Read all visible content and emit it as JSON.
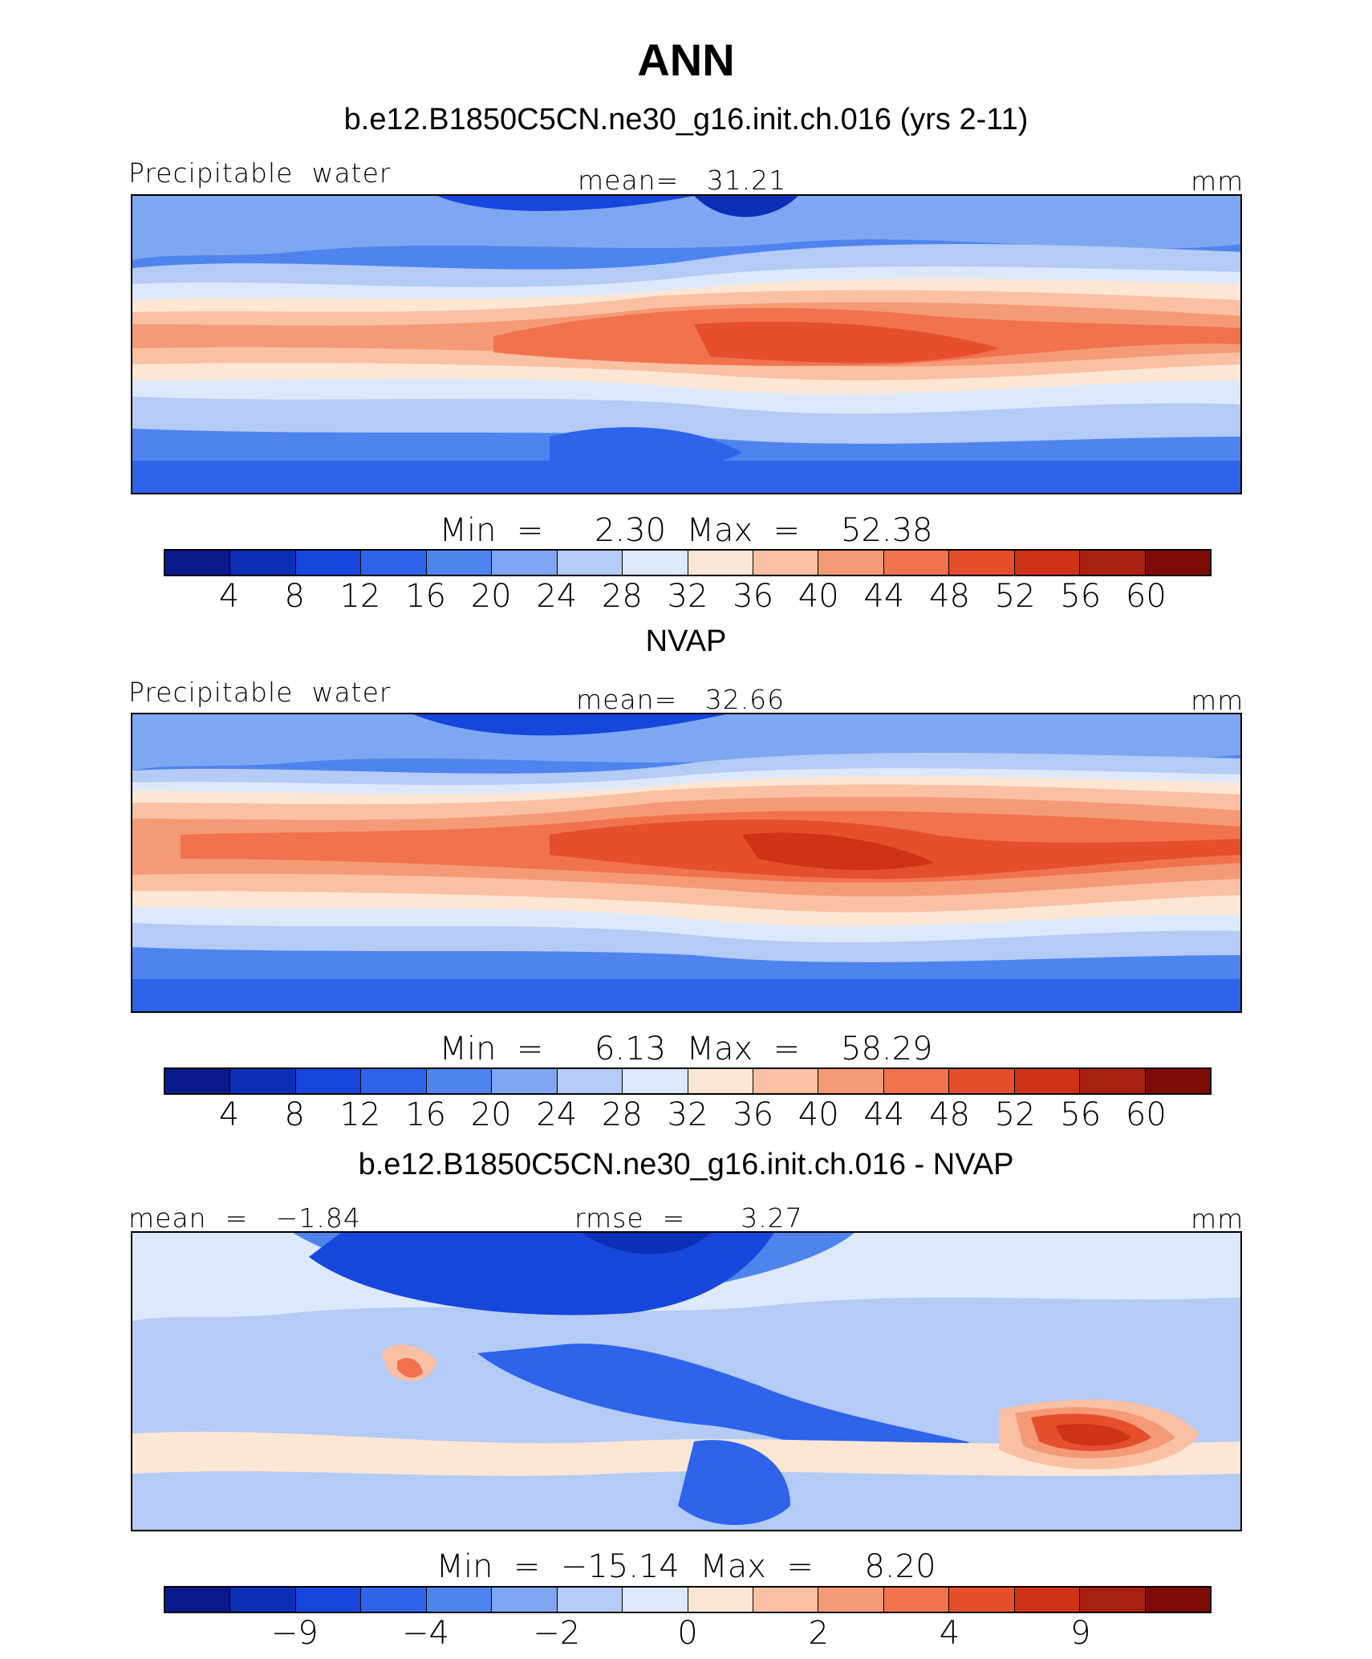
{
  "title": "ANN",
  "colors": [
    "#0a1a8c",
    "#0b2fb5",
    "#1746dc",
    "#2e63ea",
    "#4f84ee",
    "#7fa7f1",
    "#b4cbf5",
    "#dde8fa",
    "#fde6d4",
    "#fac0a4",
    "#f59a76",
    "#f0734e",
    "#e54f2e",
    "#cf3316",
    "#a8200f",
    "#7f0b06"
  ],
  "panels": [
    {
      "title": "b.e12.B1850C5CN.ne30_g16.init.ch.016 (yrs 2-11)",
      "left_label": "Precipitable  water",
      "center_label": "mean=   31.21",
      "units": "mm",
      "minmax": "Min  =     2.30  Max  =    52.38",
      "ticks": [
        "4",
        "8",
        "12",
        "16",
        "20",
        "24",
        "28",
        "32",
        "36",
        "40",
        "44",
        "48",
        "52",
        "56",
        "60"
      ]
    },
    {
      "title": "NVAP",
      "left_label": "Precipitable  water",
      "center_label": "mean=   32.66",
      "units": "mm",
      "minmax": "Min  =     6.13  Max  =    58.29",
      "ticks": [
        "4",
        "8",
        "12",
        "16",
        "20",
        "24",
        "28",
        "32",
        "36",
        "40",
        "44",
        "48",
        "52",
        "56",
        "60"
      ]
    },
    {
      "title": "b.e12.B1850C5CN.ne30_g16.init.ch.016 - NVAP",
      "left_label": "mean  =   −1.84",
      "center_label": "rmse  =      3.27",
      "units": "mm",
      "minmax": "Min  =  −15.14  Max  =     8.20",
      "ticks": [
        "−9",
        "",
        "−4",
        "",
        "−2",
        "",
        "0",
        "",
        "2",
        "",
        "4",
        "",
        "9"
      ]
    }
  ]
}
